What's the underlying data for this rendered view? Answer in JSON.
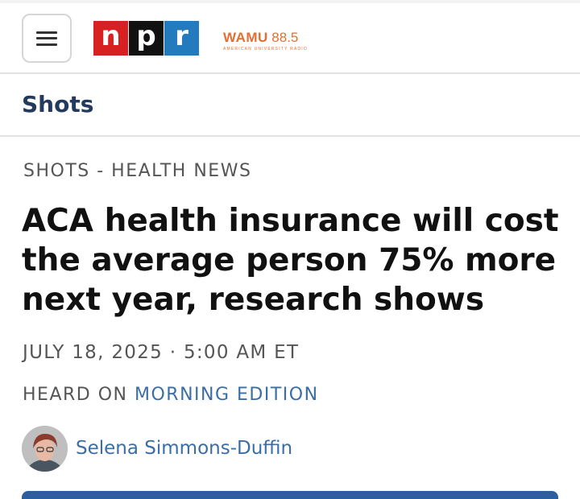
{
  "header": {
    "menu_icon": "hamburger-menu-icon",
    "logo": {
      "letters": [
        "n",
        "p",
        "r"
      ],
      "colors": [
        "#d62021",
        "#111111",
        "#237bbd"
      ]
    },
    "station": {
      "name": "WAMU",
      "frequency": "88.5",
      "tagline": "AMERICAN UNIVERSITY RADIO",
      "color": "#e26f33"
    }
  },
  "section": {
    "title": "Shots",
    "color": "#233a5e"
  },
  "article": {
    "kicker": "SHOTS - HEALTH NEWS",
    "headline": "ACA health insurance will cost the average person 75% more next year, research shows",
    "date": "JULY 18, 2025",
    "separator": "·",
    "time": "5:00 AM ET",
    "heard_on_prefix": "HEARD ON",
    "heard_on_show": "MORNING EDITION",
    "author": "Selena Simmons-Duffin",
    "link_color": "#3a6ea5"
  }
}
